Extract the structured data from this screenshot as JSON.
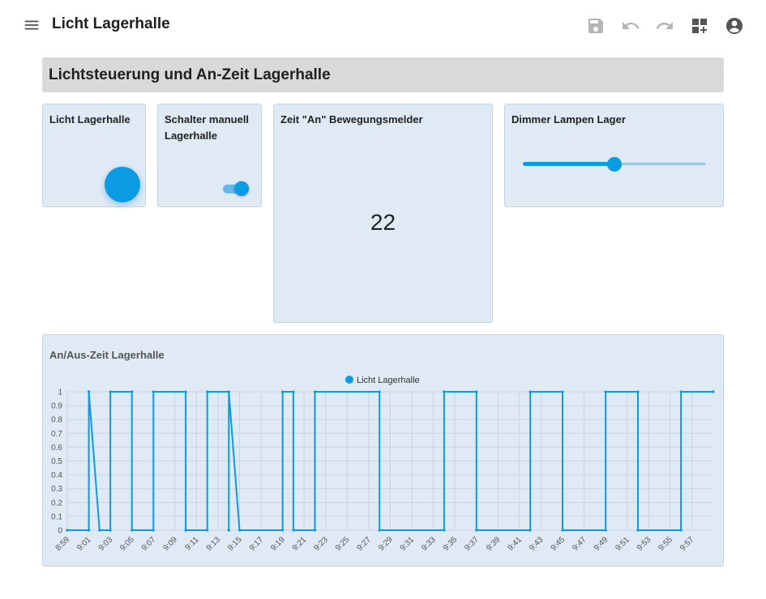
{
  "header": {
    "title": "Licht Lagerhalle"
  },
  "section": {
    "title": "Lichtsteuerung und An-Zeit Lagerhalle"
  },
  "cards": {
    "light": {
      "title": "Licht Lagerhalle"
    },
    "switch": {
      "title": "Schalter manuell Lagerhalle",
      "on": true
    },
    "time": {
      "title": "Zeit \"An\" Bewegungsmelder",
      "value": "22"
    },
    "dimmer": {
      "title": "Dimmer Lampen Lager",
      "level": 0.5
    },
    "chart": {
      "title": "An/Aus-Zeit Lagerhalle"
    }
  },
  "icons": {
    "menu": "menu-icon",
    "save": "save-icon",
    "undo": "undo-icon",
    "redo": "redo-icon",
    "widgets": "add-widget-icon",
    "account": "account-icon"
  },
  "colors": {
    "accent": "#0a9be3",
    "card": "#dfeaf5"
  },
  "chart_data": {
    "type": "line",
    "title": "An/Aus-Zeit Lagerhalle",
    "xlabel": "",
    "ylabel": "",
    "ylim": [
      0,
      1
    ],
    "yticks": [
      "0",
      "0.1",
      "0.2",
      "0.3",
      "0.4",
      "0.5",
      "0.6",
      "0.7",
      "0.8",
      "0.9",
      "1"
    ],
    "xticks": [
      "8:59",
      "9:01",
      "9:03",
      "9:05",
      "9:07",
      "9:09",
      "9:11",
      "9:13",
      "9:15",
      "9:17",
      "9:19",
      "9:21",
      "9:23",
      "9:25",
      "9:27",
      "9:29",
      "9:31",
      "9:33",
      "9:35",
      "9:37",
      "9:39",
      "9:41",
      "9:43",
      "9:45",
      "9:47",
      "9:49",
      "9:51",
      "9:53",
      "9:55",
      "9:57"
    ],
    "grid": true,
    "legend": "top-center",
    "series": [
      {
        "name": "Licht Lagerhalle",
        "color": "#0a9be3",
        "step": true,
        "x": [
          "8:59",
          "9:01",
          "9:01",
          "9:01",
          "9:01",
          "9:02",
          "9:03",
          "9:03",
          "9:05",
          "9:05",
          "9:07",
          "9:07",
          "9:10",
          "9:10",
          "9:12",
          "9:12",
          "9:14",
          "9:14",
          "9:14",
          "9:14",
          "9:14",
          "9:15",
          "9:19",
          "9:19",
          "9:20",
          "9:20",
          "9:22",
          "9:22",
          "9:28",
          "9:28",
          "9:34",
          "9:34",
          "9:37",
          "9:37",
          "9:42",
          "9:42",
          "9:45",
          "9:45",
          "9:49",
          "9:49",
          "9:52",
          "9:52",
          "9:56",
          "9:56",
          "9:59"
        ],
        "values": [
          0,
          0,
          1,
          0,
          1,
          0,
          0,
          1,
          1,
          0,
          0,
          1,
          1,
          0,
          0,
          1,
          1,
          0,
          1,
          0,
          1,
          0,
          0,
          1,
          1,
          0,
          0,
          1,
          1,
          0,
          0,
          1,
          1,
          0,
          0,
          1,
          1,
          0,
          0,
          1,
          1,
          0,
          0,
          1,
          1
        ]
      }
    ]
  }
}
